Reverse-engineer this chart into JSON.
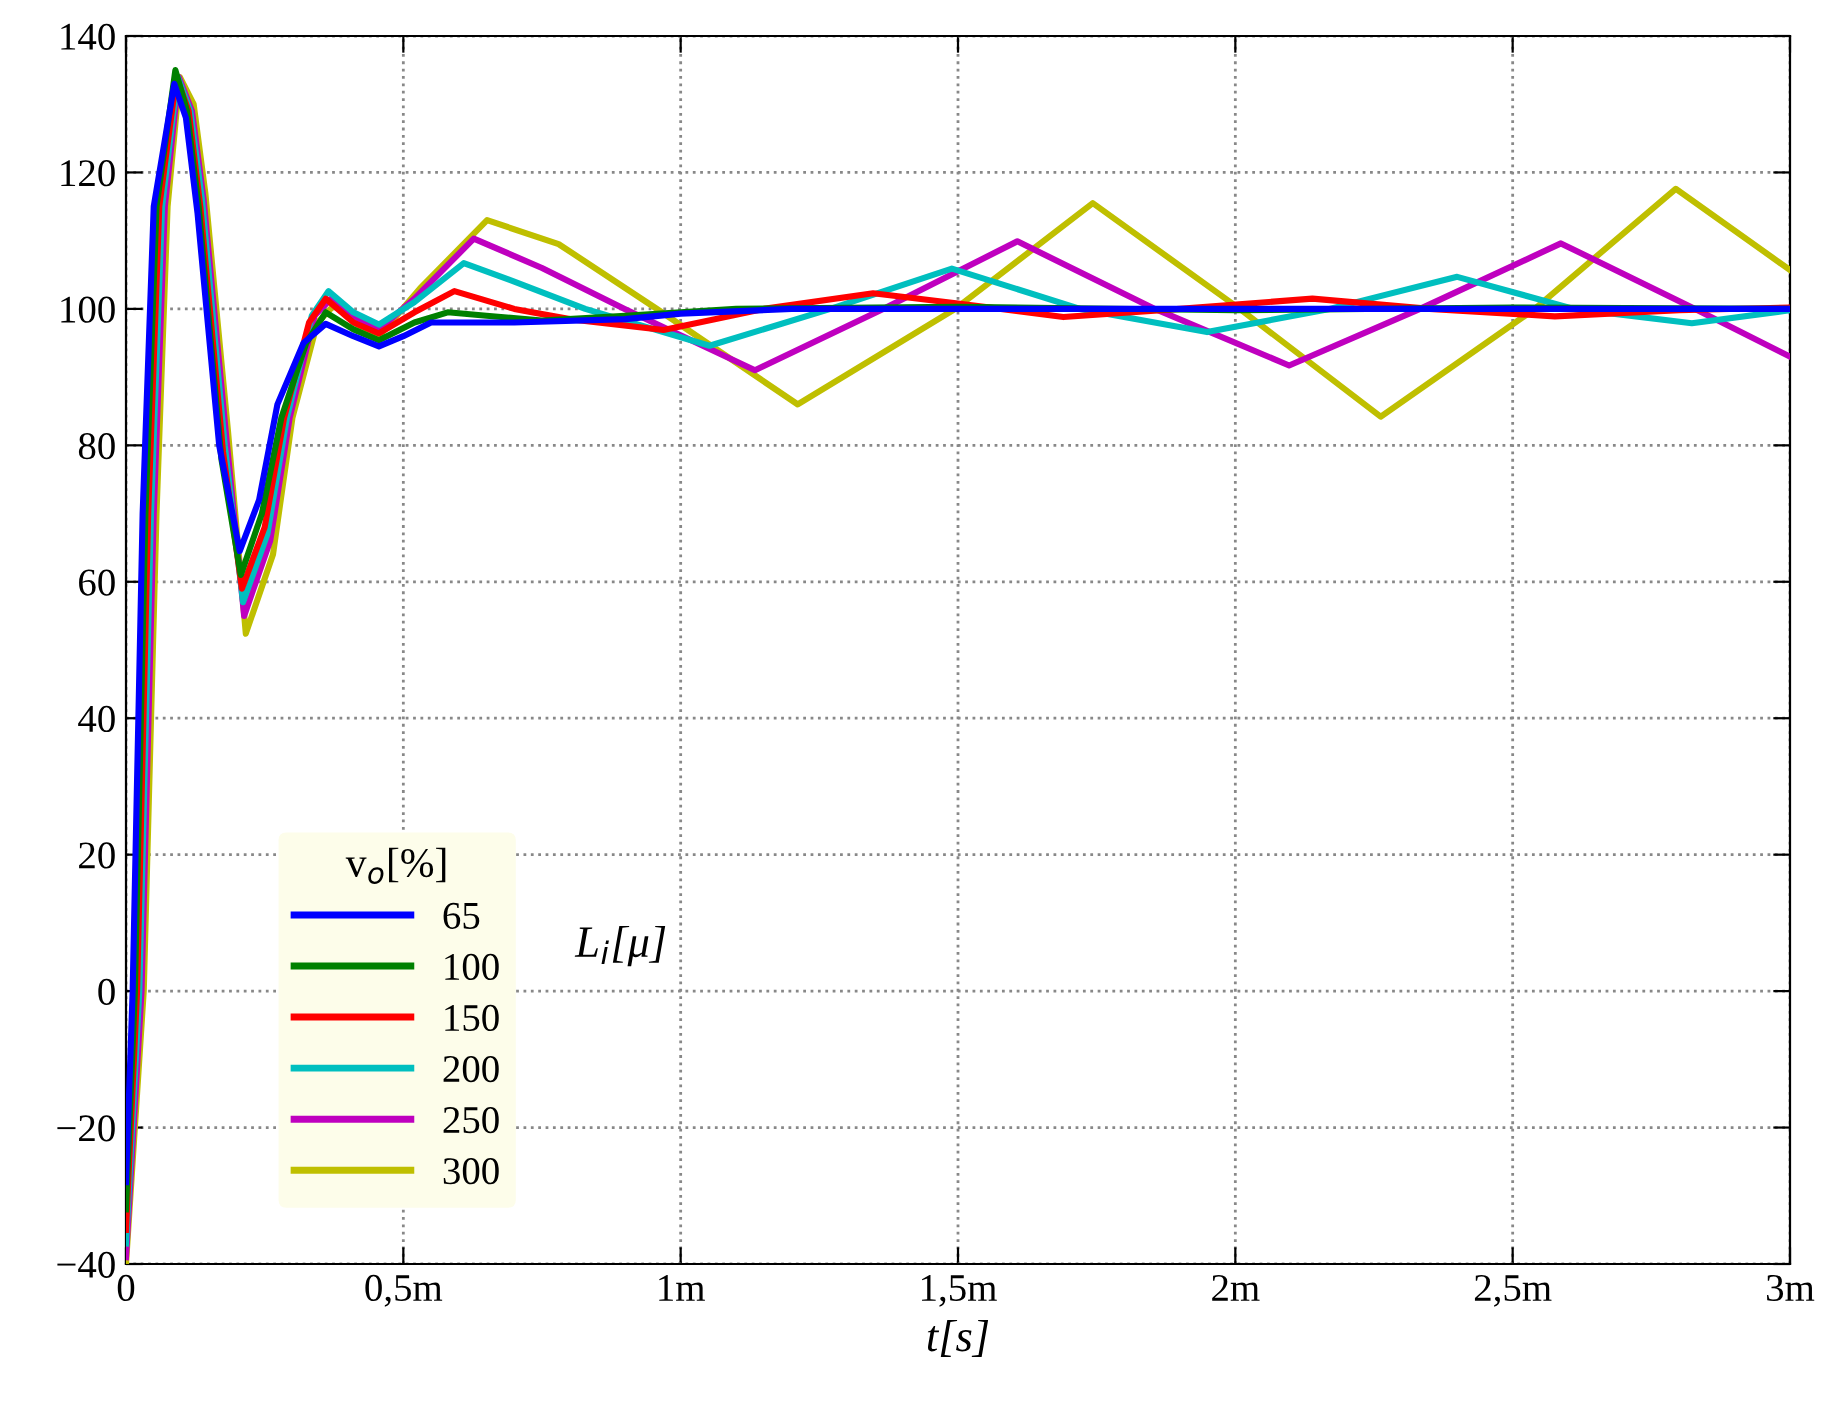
{
  "chart_data": {
    "type": "line",
    "xlabel": "t[s]",
    "legend_title": "v$_{o}$[%]",
    "annotations": [
      "L$_{i}$[μ]"
    ],
    "xlim": [
      0,
      3
    ],
    "xticks": [
      0,
      {
        "value": 0.5,
        "label": "0,5m"
      },
      {
        "value": 1,
        "label": "1m"
      },
      {
        "value": 1.5,
        "label": "1,5m"
      },
      {
        "value": 2,
        "label": "2m"
      },
      {
        "value": 2.5,
        "label": "2,5m"
      },
      {
        "value": 3,
        "label": "3m"
      }
    ],
    "ylim": [
      -40,
      140
    ],
    "yticks": [
      -40,
      -20,
      0,
      20,
      40,
      60,
      80,
      100,
      120,
      140
    ],
    "grid": true,
    "legend": "bottom left",
    "marker": "none",
    "line_style": "solid",
    "series": [
      {
        "name": "65",
        "color": "#0000ff",
        "x": [
          0,
          0.012,
          0.03,
          0.05,
          0.087,
          0.108,
          0.129,
          0.168,
          0.205,
          0.24,
          0.273,
          0.32,
          0.36,
          0.41,
          0.456,
          0.5,
          0.55,
          0.7,
          0.9,
          1.0,
          1.2,
          3.0
        ],
        "values": [
          -28,
          0,
          70,
          115,
          133,
          128,
          114,
          80,
          64.5,
          72,
          86,
          95,
          97.8,
          96,
          94.5,
          96,
          98,
          98,
          98.5,
          99.3,
          100,
          100
        ]
      },
      {
        "name": "100",
        "color": "#008000",
        "x": [
          0,
          0.016,
          0.035,
          0.055,
          0.089,
          0.11,
          0.131,
          0.172,
          0.207,
          0.245,
          0.28,
          0.325,
          0.36,
          0.41,
          0.456,
          0.52,
          0.58,
          0.65,
          0.75,
          0.9,
          1.1,
          1.5,
          2.0,
          2.5,
          3.0
        ],
        "values": [
          -32,
          0,
          70,
          115,
          135,
          129,
          115,
          78,
          61,
          70,
          84,
          95,
          99.5,
          97,
          95.4,
          98,
          99.5,
          99,
          98.3,
          99,
          100,
          100.3,
          99.8,
          100.2,
          100
        ]
      },
      {
        "name": "150",
        "color": "#ff0000",
        "x": [
          0,
          0.02,
          0.04,
          0.06,
          0.091,
          0.113,
          0.134,
          0.175,
          0.209,
          0.25,
          0.285,
          0.33,
          0.36,
          0.41,
          0.456,
          0.52,
          0.592,
          0.7,
          0.8,
          0.969,
          1.15,
          1.347,
          1.5,
          1.69,
          1.9,
          2.139,
          2.35,
          2.576,
          2.8,
          3.0
        ],
        "values": [
          -35,
          0,
          70,
          115,
          134,
          129,
          115,
          79,
          59,
          68,
          84,
          98,
          101.5,
          98,
          96.4,
          99.5,
          102.6,
          100,
          98.5,
          96.9,
          100,
          102.3,
          100.8,
          98.8,
          100,
          101.5,
          100,
          98.9,
          99.8,
          100.2
        ]
      },
      {
        "name": "200",
        "color": "#00bfbf",
        "x": [
          0,
          0.024,
          0.045,
          0.065,
          0.093,
          0.116,
          0.137,
          0.178,
          0.211,
          0.255,
          0.29,
          0.335,
          0.365,
          0.41,
          0.456,
          0.52,
          0.609,
          0.7,
          0.828,
          1.052,
          1.27,
          1.489,
          1.72,
          1.949,
          2.17,
          2.4,
          2.61,
          2.823,
          3.0
        ],
        "values": [
          -37,
          0,
          70,
          115,
          134,
          129,
          116,
          80,
          57,
          67,
          84,
          99,
          102.6,
          99.5,
          97.7,
          101,
          106.7,
          104,
          100,
          94.6,
          100,
          105.9,
          100,
          96.6,
          100,
          104.7,
          100,
          97.9,
          99.8
        ]
      },
      {
        "name": "250",
        "color": "#bf00bf",
        "x": [
          0,
          0.028,
          0.05,
          0.07,
          0.095,
          0.119,
          0.14,
          0.181,
          0.213,
          0.26,
          0.295,
          0.34,
          0.37,
          0.41,
          0.456,
          0.52,
          0.627,
          0.75,
          0.899,
          1.134,
          1.365,
          1.607,
          1.855,
          2.097,
          2.333,
          2.587,
          2.829,
          3.0
        ],
        "values": [
          -39,
          0,
          70,
          115,
          134,
          129,
          116,
          81,
          55,
          66,
          84,
          99,
          101.5,
          99,
          97,
          101.5,
          110.3,
          106,
          100,
          91,
          100,
          109.9,
          100,
          91.7,
          100,
          109.6,
          100,
          93
        ]
      },
      {
        "name": "300",
        "color": "#bfbf00",
        "x": [
          0,
          0.032,
          0.055,
          0.075,
          0.097,
          0.122,
          0.143,
          0.184,
          0.216,
          0.265,
          0.3,
          0.345,
          0.375,
          0.42,
          0.456,
          0.53,
          0.651,
          0.78,
          0.957,
          1.211,
          1.495,
          1.743,
          2.008,
          2.262,
          2.54,
          2.794,
          3.0
        ],
        "values": [
          -40,
          0,
          70,
          115,
          134,
          130,
          117,
          82,
          52.4,
          64,
          84,
          98,
          100.5,
          97.5,
          96,
          103,
          113,
          109.5,
          100,
          86,
          100,
          115.5,
          100,
          84.2,
          100,
          117.6,
          105.7
        ]
      }
    ]
  }
}
